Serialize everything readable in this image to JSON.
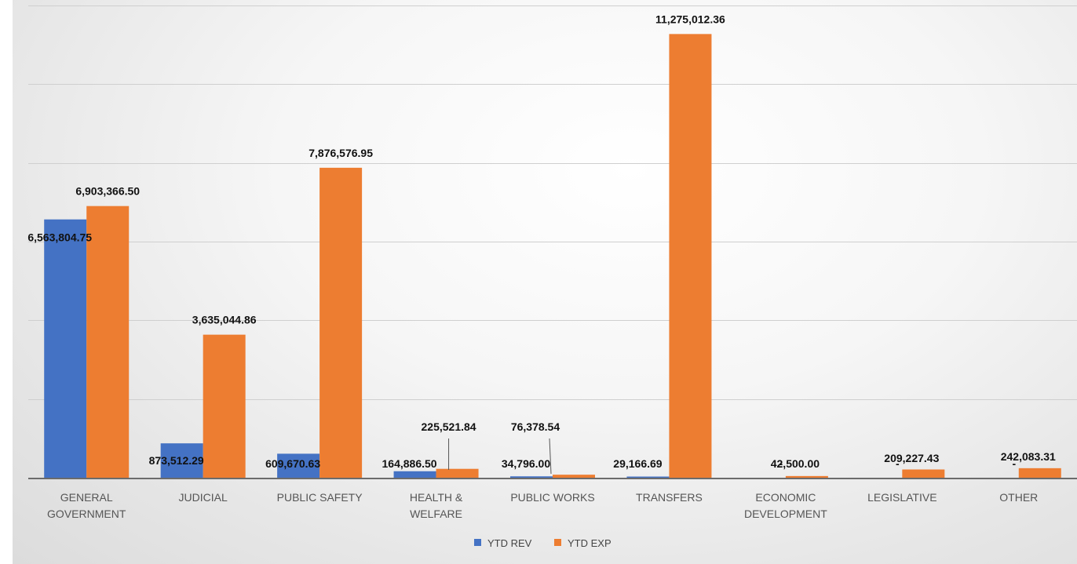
{
  "chart_data": {
    "type": "bar",
    "categories": [
      [
        "GENERAL",
        "GOVERNMENT"
      ],
      [
        "JUDICIAL"
      ],
      [
        "PUBLIC SAFETY"
      ],
      [
        "HEALTH &",
        "WELFARE"
      ],
      [
        "PUBLIC WORKS"
      ],
      [
        "TRANSFERS"
      ],
      [
        "ECONOMIC",
        "DEVELOPMENT"
      ],
      [
        "LEGISLATIVE"
      ],
      [
        "OTHER"
      ]
    ],
    "series": [
      {
        "name": "YTD REV",
        "color": "#4472c4",
        "values": [
          6563804.75,
          873512.29,
          609670.63,
          164886.5,
          34796.0,
          29166.69,
          0,
          0,
          0
        ],
        "labels": [
          "6,563,804.75",
          "873,512.29",
          "609,670.63",
          "164,886.50",
          "34,796.00",
          "29,166.69",
          "-",
          "-",
          "-"
        ]
      },
      {
        "name": "YTD EXP",
        "color": "#ed7d31",
        "values": [
          6903366.5,
          3635044.86,
          7876576.95,
          225521.84,
          76378.54,
          11275012.36,
          42500.0,
          209227.43,
          242083.31
        ],
        "labels": [
          "6,903,366.50",
          "3,635,044.86",
          "7,876,576.95",
          "225,521.84",
          "76,378.54",
          "11,275,012.36",
          "42,500.00",
          "209,227.43",
          "242,083.31"
        ]
      }
    ],
    "ylim": [
      0,
      12000000
    ],
    "grid": true,
    "legend_position": "bottom",
    "title": "",
    "xlabel": "",
    "ylabel": ""
  }
}
